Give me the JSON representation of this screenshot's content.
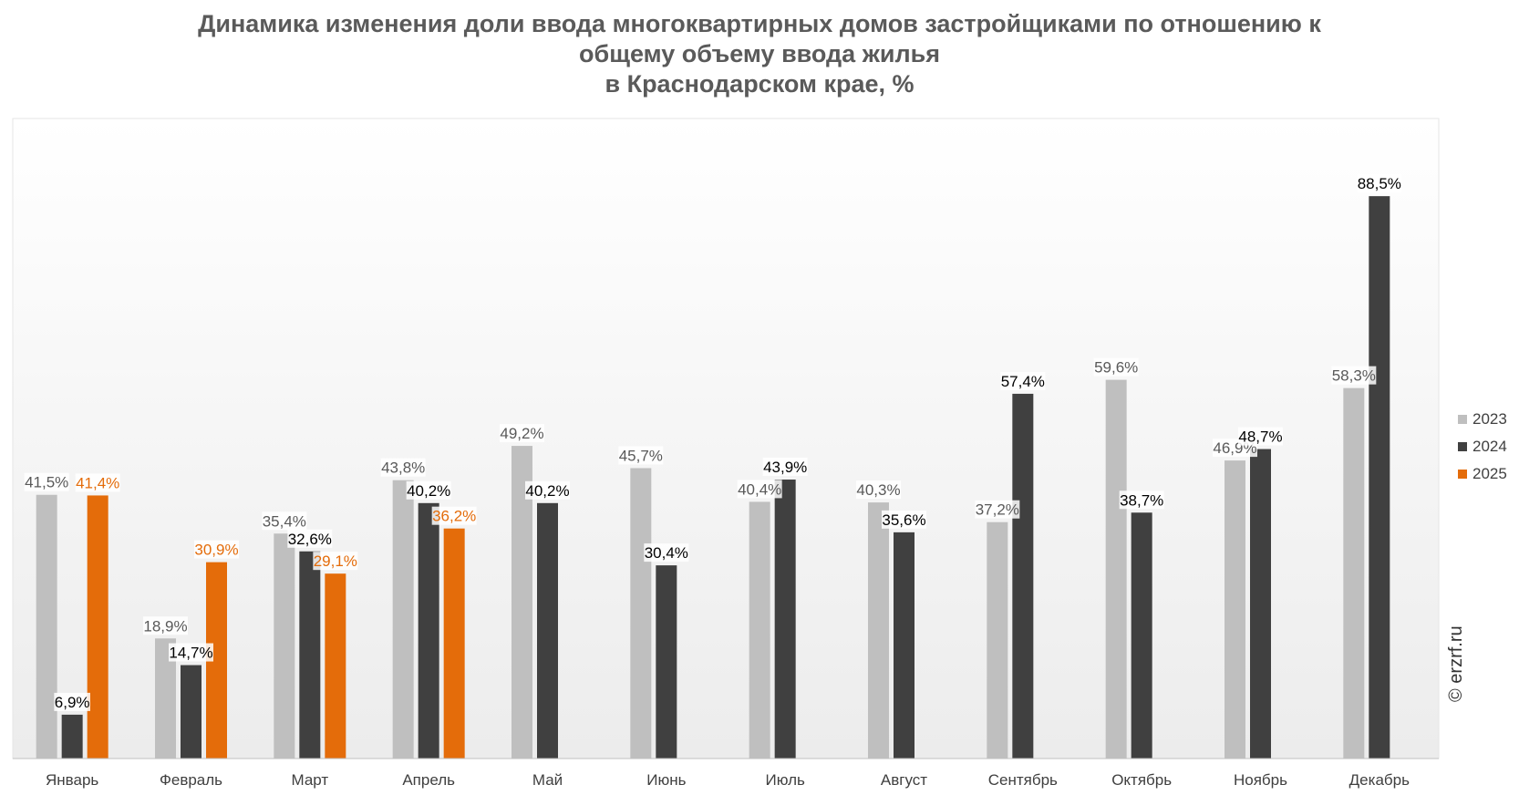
{
  "title_lines": [
    "Динамика изменения доли ввода многоквартирных домов застройщиками по отношению к",
    "общему объему ввода жилья",
    "в Краснодарском крае, %"
  ],
  "watermark": "© erzrf.ru",
  "colors": {
    "2023": "#bfbfbf",
    "2024": "#404040",
    "2025": "#e46c0a"
  },
  "chart_data": {
    "type": "bar",
    "title": "Динамика изменения доли ввода многоквартирных домов застройщиками по отношению к общему объему ввода жилья в Краснодарском крае, %",
    "categories": [
      "Январь",
      "Февраль",
      "Март",
      "Апрель",
      "Май",
      "Июнь",
      "Июль",
      "Август",
      "Сентябрь",
      "Октябрь",
      "Ноябрь",
      "Декабрь"
    ],
    "series": [
      {
        "name": "2023",
        "values": [
          41.5,
          18.9,
          35.4,
          43.8,
          49.2,
          45.7,
          40.4,
          40.3,
          37.2,
          59.6,
          46.9,
          58.3
        ],
        "labels": [
          "41,5%",
          "18,9%",
          "35,4%",
          "43,8%",
          "49,2%",
          "45,7%",
          "40,4%",
          "40,3%",
          "37,2%",
          "59,6%",
          "46,9%",
          "58,3%"
        ]
      },
      {
        "name": "2024",
        "values": [
          6.9,
          14.7,
          32.6,
          40.2,
          40.2,
          30.4,
          43.9,
          35.6,
          57.4,
          38.7,
          48.7,
          88.5
        ],
        "labels": [
          "6,9%",
          "14,7%",
          "32,6%",
          "40,2%",
          "40,2%",
          "30,4%",
          "43,9%",
          "35,6%",
          "57,4%",
          "38,7%",
          "48,7%",
          "88,5%"
        ]
      },
      {
        "name": "2025",
        "values": [
          41.4,
          30.9,
          29.1,
          36.2,
          null,
          null,
          null,
          null,
          null,
          null,
          null,
          null
        ],
        "labels": [
          "41,4%",
          "30,9%",
          "29,1%",
          "36,2%",
          "",
          "",
          "",
          "",
          "",
          "",
          "",
          ""
        ]
      }
    ],
    "ylim": [
      0,
      100
    ],
    "legend_position": "right",
    "grid": false
  }
}
